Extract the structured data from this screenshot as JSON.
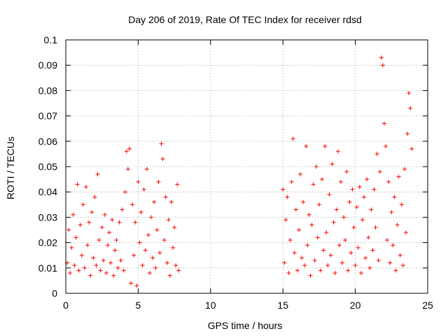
{
  "chart_data": {
    "type": "scatter",
    "title": "Day 206 of 2019, Rate Of TEC Index for receiver rdsd",
    "xlabel": "GPS time / hours",
    "ylabel": "ROTI / TECUs",
    "xlim": [
      0,
      25
    ],
    "ylim": [
      0,
      0.1
    ],
    "x_ticks": [
      0,
      5,
      10,
      15,
      20,
      25
    ],
    "x_tick_labels": [
      "0",
      "5",
      "10",
      "15",
      "20",
      "25"
    ],
    "y_ticks": [
      0,
      0.01,
      0.02,
      0.03,
      0.04,
      0.05,
      0.06,
      0.07,
      0.08,
      0.09,
      0.1
    ],
    "y_tick_labels": [
      "0",
      "0.01",
      "0.02",
      "0.03",
      "0.04",
      "0.05",
      "0.06",
      "0.07",
      "0.08",
      "0.09",
      "0.1"
    ],
    "grid": true,
    "marker": "+",
    "color": "#ff0000",
    "data_windows": [
      {
        "x_start": 0.0,
        "x_end": 7.8
      },
      {
        "x_start": 15.0,
        "x_end": 23.9
      }
    ],
    "series": [
      {
        "points": [
          [
            0.1,
            0.012
          ],
          [
            0.2,
            0.025
          ],
          [
            0.3,
            0.008
          ],
          [
            0.4,
            0.018
          ],
          [
            0.5,
            0.031
          ],
          [
            0.6,
            0.011
          ],
          [
            0.7,
            0.022
          ],
          [
            0.8,
            0.043
          ],
          [
            0.9,
            0.009
          ],
          [
            1.0,
            0.027
          ],
          [
            1.1,
            0.015
          ],
          [
            1.2,
            0.035
          ],
          [
            1.3,
            0.01
          ],
          [
            1.4,
            0.042
          ],
          [
            1.5,
            0.019
          ],
          [
            1.6,
            0.028
          ],
          [
            1.7,
            0.007
          ],
          [
            1.8,
            0.032
          ],
          [
            1.9,
            0.014
          ],
          [
            2.0,
            0.038
          ],
          [
            2.1,
            0.011
          ],
          [
            2.2,
            0.047
          ],
          [
            2.3,
            0.021
          ],
          [
            2.4,
            0.009
          ],
          [
            2.5,
            0.026
          ],
          [
            2.6,
            0.013
          ],
          [
            2.7,
            0.031
          ],
          [
            2.8,
            0.008
          ],
          [
            2.9,
            0.019
          ],
          [
            3.0,
            0.024
          ],
          [
            3.1,
            0.012
          ],
          [
            3.2,
            0.029
          ],
          [
            3.3,
            0.007
          ],
          [
            3.4,
            0.017
          ],
          [
            3.5,
            0.021
          ],
          [
            3.6,
            0.01
          ],
          [
            3.7,
            0.028
          ],
          [
            3.8,
            0.013
          ],
          [
            3.9,
            0.033
          ],
          [
            4.0,
            0.009
          ],
          [
            4.1,
            0.04
          ],
          [
            4.2,
            0.056
          ],
          [
            4.3,
            0.049
          ],
          [
            4.4,
            0.057
          ],
          [
            4.5,
            0.004
          ],
          [
            4.6,
            0.035
          ],
          [
            4.7,
            0.015
          ],
          [
            4.8,
            0.028
          ],
          [
            4.9,
            0.003
          ],
          [
            5.0,
            0.044
          ],
          [
            5.1,
            0.02
          ],
          [
            5.2,
            0.032
          ],
          [
            5.3,
            0.011
          ],
          [
            5.4,
            0.041
          ],
          [
            5.5,
            0.017
          ],
          [
            5.6,
            0.049
          ],
          [
            5.7,
            0.023
          ],
          [
            5.8,
            0.008
          ],
          [
            5.9,
            0.03
          ],
          [
            6.0,
            0.014
          ],
          [
            6.1,
            0.036
          ],
          [
            6.2,
            0.01
          ],
          [
            6.3,
            0.025
          ],
          [
            6.4,
            0.044
          ],
          [
            6.5,
            0.016
          ],
          [
            6.6,
            0.059
          ],
          [
            6.7,
            0.053
          ],
          [
            6.8,
            0.021
          ],
          [
            6.9,
            0.038
          ],
          [
            7.0,
            0.012
          ],
          [
            7.1,
            0.029
          ],
          [
            7.2,
            0.007
          ],
          [
            7.3,
            0.036
          ],
          [
            7.4,
            0.018
          ],
          [
            7.5,
            0.026
          ],
          [
            7.6,
            0.011
          ],
          [
            7.7,
            0.043
          ],
          [
            7.8,
            0.009
          ],
          [
            15.0,
            0.041
          ],
          [
            15.1,
            0.012
          ],
          [
            15.2,
            0.029
          ],
          [
            15.3,
            0.038
          ],
          [
            15.4,
            0.008
          ],
          [
            15.5,
            0.021
          ],
          [
            15.6,
            0.044
          ],
          [
            15.7,
            0.061
          ],
          [
            15.8,
            0.016
          ],
          [
            15.9,
            0.033
          ],
          [
            16.0,
            0.009
          ],
          [
            16.1,
            0.025
          ],
          [
            16.2,
            0.047
          ],
          [
            16.3,
            0.014
          ],
          [
            16.4,
            0.036
          ],
          [
            16.5,
            0.011
          ],
          [
            16.6,
            0.058
          ],
          [
            16.7,
            0.019
          ],
          [
            16.8,
            0.031
          ],
          [
            16.9,
            0.007
          ],
          [
            17.0,
            0.027
          ],
          [
            17.1,
            0.043
          ],
          [
            17.2,
            0.013
          ],
          [
            17.3,
            0.05
          ],
          [
            17.4,
            0.022
          ],
          [
            17.5,
            0.035
          ],
          [
            17.6,
            0.009
          ],
          [
            17.7,
            0.045
          ],
          [
            17.8,
            0.017
          ],
          [
            17.9,
            0.058
          ],
          [
            18.0,
            0.024
          ],
          [
            18.1,
            0.011
          ],
          [
            18.2,
            0.039
          ],
          [
            18.3,
            0.015
          ],
          [
            18.4,
            0.051
          ],
          [
            18.5,
            0.028
          ],
          [
            18.6,
            0.008
          ],
          [
            18.7,
            0.033
          ],
          [
            18.8,
            0.056
          ],
          [
            18.9,
            0.019
          ],
          [
            19.0,
            0.044
          ],
          [
            19.1,
            0.012
          ],
          [
            19.2,
            0.03
          ],
          [
            19.3,
            0.021
          ],
          [
            19.4,
            0.048
          ],
          [
            19.5,
            0.009
          ],
          [
            19.6,
            0.036
          ],
          [
            19.7,
            0.016
          ],
          [
            19.8,
            0.041
          ],
          [
            19.9,
            0.026
          ],
          [
            20.0,
            0.011
          ],
          [
            20.1,
            0.034
          ],
          [
            20.2,
            0.018
          ],
          [
            20.3,
            0.042
          ],
          [
            20.4,
            0.008
          ],
          [
            20.5,
            0.029
          ],
          [
            20.6,
            0.038
          ],
          [
            20.7,
            0.014
          ],
          [
            20.8,
            0.045
          ],
          [
            20.9,
            0.022
          ],
          [
            21.0,
            0.01
          ],
          [
            21.1,
            0.033
          ],
          [
            21.2,
            0.017
          ],
          [
            21.3,
            0.041
          ],
          [
            21.4,
            0.026
          ],
          [
            21.5,
            0.055
          ],
          [
            21.6,
            0.013
          ],
          [
            21.7,
            0.048
          ],
          [
            21.8,
            0.093
          ],
          [
            21.9,
            0.09
          ],
          [
            22.0,
            0.067
          ],
          [
            22.1,
            0.058
          ],
          [
            22.2,
            0.021
          ],
          [
            22.3,
            0.044
          ],
          [
            22.4,
            0.012
          ],
          [
            22.5,
            0.032
          ],
          [
            22.6,
            0.019
          ],
          [
            22.7,
            0.038
          ],
          [
            22.8,
            0.009
          ],
          [
            22.9,
            0.027
          ],
          [
            23.0,
            0.046
          ],
          [
            23.1,
            0.015
          ],
          [
            23.2,
            0.035
          ],
          [
            23.3,
            0.011
          ],
          [
            23.4,
            0.049
          ],
          [
            23.5,
            0.024
          ],
          [
            23.6,
            0.063
          ],
          [
            23.7,
            0.079
          ],
          [
            23.8,
            0.073
          ],
          [
            23.9,
            0.057
          ]
        ]
      }
    ]
  }
}
